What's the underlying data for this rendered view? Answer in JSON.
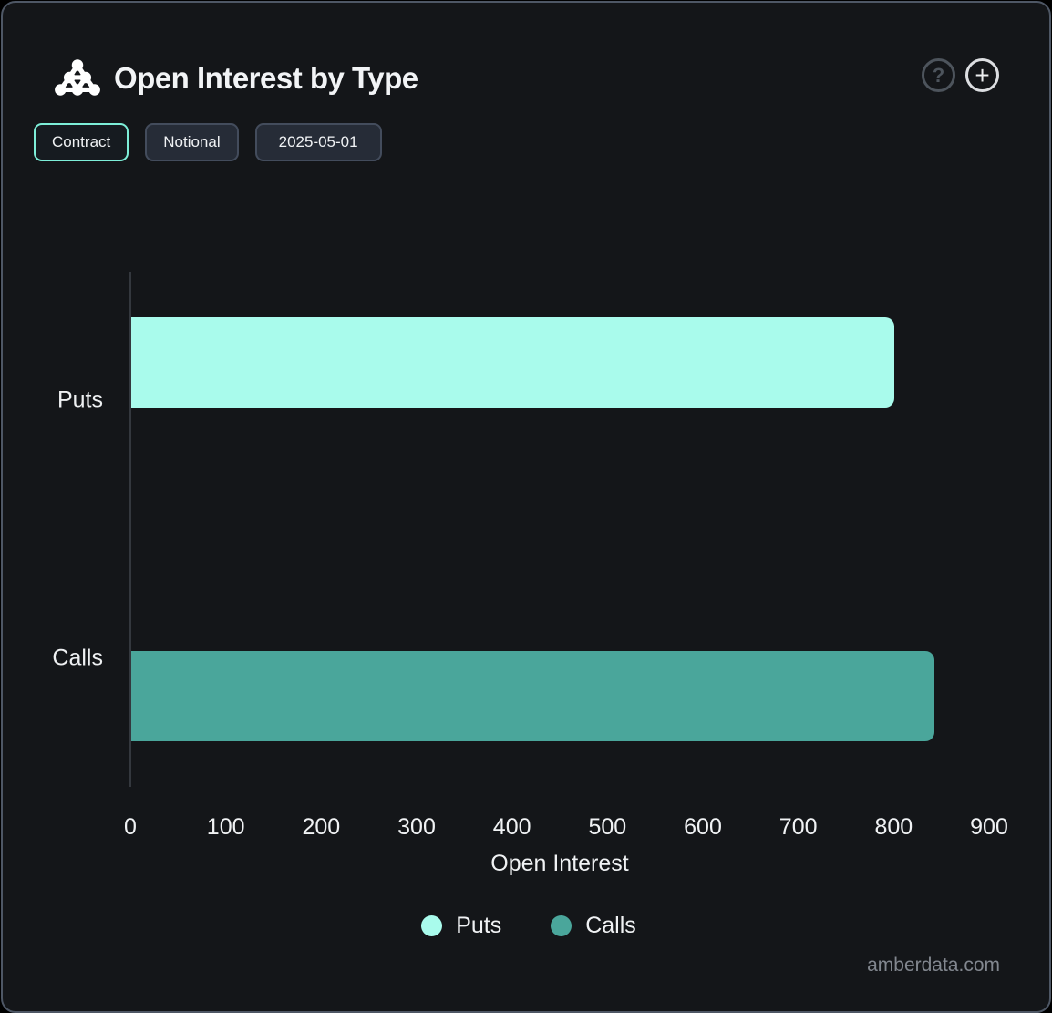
{
  "header": {
    "title": "Open Interest by Type",
    "help_label": "?",
    "add_label": "+"
  },
  "toolbar": {
    "buttons": [
      {
        "label": "Contract",
        "active": true
      },
      {
        "label": "Notional",
        "active": false
      },
      {
        "label": "2025-05-01",
        "active": false
      }
    ]
  },
  "chart_data": {
    "type": "bar",
    "orientation": "horizontal",
    "title": "Open Interest by Type",
    "categories": [
      "Puts",
      "Calls"
    ],
    "series": [
      {
        "name": "Puts",
        "value": 800,
        "color": "#a9fbec"
      },
      {
        "name": "Calls",
        "value": 842,
        "color": "#4aa69b"
      }
    ],
    "xlabel": "Open Interest",
    "x_ticks": [
      0,
      100,
      200,
      300,
      400,
      500,
      600,
      700,
      800,
      900
    ],
    "xlim": [
      0,
      920
    ],
    "grid": false,
    "legend_position": "bottom"
  },
  "footer": {
    "watermark": "amberdata.com"
  },
  "colors": {
    "background": "#141619",
    "card_border": "#4e5765",
    "puts_bar": "#a9fbec",
    "calls_bar": "#4aa69b",
    "active_button_border": "#7deed8",
    "text": "#f0f2f4"
  }
}
